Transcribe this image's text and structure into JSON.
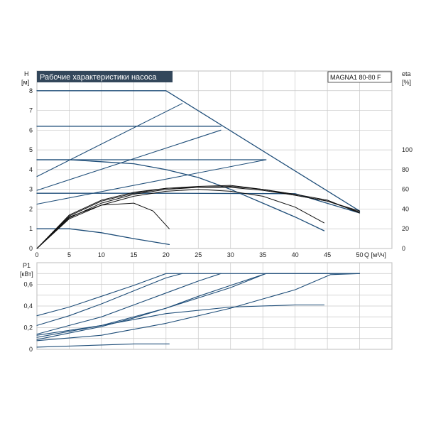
{
  "chart_data": [
    {
      "type": "line",
      "title": "Рабочие характеристики насоса",
      "model": "MAGNA1 80-80 F",
      "ylabel_left": [
        "H",
        "[м]"
      ],
      "ylabel_right": [
        "eta",
        "[%]"
      ],
      "xlabel": "Q [м³/ч]",
      "xlim": [
        0,
        55
      ],
      "ylim": [
        0,
        9
      ],
      "ylim_right": [
        0,
        180
      ],
      "x_ticks": [
        0,
        5,
        10,
        15,
        20,
        25,
        30,
        35,
        40,
        45,
        50
      ],
      "y_ticks": [
        0,
        1,
        2,
        3,
        4,
        5,
        6,
        7,
        8
      ],
      "y_right_ticks": [
        0,
        20,
        40,
        60,
        80,
        100
      ],
      "grid": true,
      "head_series": [
        {
          "x": [
            0,
            10,
            20,
            20.5,
            50
          ],
          "y": [
            8.0,
            8.0,
            8.0,
            7.9,
            1.9
          ]
        },
        {
          "x": [
            0,
            28.5
          ],
          "y": [
            6.2,
            6.2
          ]
        },
        {
          "x": [
            0,
            35.5
          ],
          "y": [
            4.5,
            4.5
          ]
        },
        {
          "x": [
            0,
            20,
            40,
            50
          ],
          "y": [
            2.8,
            2.8,
            2.78,
            1.8
          ]
        },
        {
          "x": [
            0,
            5,
            10,
            15,
            20,
            25,
            30,
            35,
            40,
            44.5
          ],
          "y": [
            4.5,
            4.5,
            4.4,
            4.3,
            4.0,
            3.6,
            3.0,
            2.3,
            1.6,
            0.9
          ]
        },
        {
          "x": [
            0,
            5,
            10,
            15,
            20.5
          ],
          "y": [
            1.0,
            1.0,
            0.8,
            0.5,
            0.2
          ]
        }
      ],
      "control_lines": [
        {
          "x": [
            0,
            22.5
          ],
          "y": [
            3.65,
            7.35
          ]
        },
        {
          "x": [
            0,
            28.5
          ],
          "y": [
            2.95,
            6.0
          ]
        },
        {
          "x": [
            0,
            35.5
          ],
          "y": [
            2.25,
            4.5
          ]
        }
      ],
      "efficiency_series": [
        {
          "x": [
            0,
            5,
            10,
            15,
            20,
            25,
            30,
            35,
            40,
            45,
            50
          ],
          "y": [
            0,
            34,
            49,
            57,
            61,
            63,
            64,
            60,
            55,
            49,
            36
          ]
        },
        {
          "x": [
            0,
            5,
            10,
            15,
            20,
            25,
            30,
            35,
            40,
            45,
            50
          ],
          "y": [
            0,
            33,
            48,
            56,
            61,
            62,
            63,
            60,
            54,
            48,
            37
          ]
        },
        {
          "x": [
            0,
            5,
            10,
            15,
            20,
            25,
            30,
            35,
            40,
            45,
            50
          ],
          "y": [
            0,
            31,
            46,
            55,
            60,
            62,
            62,
            59,
            54,
            48,
            38
          ]
        },
        {
          "x": [
            0,
            5,
            10,
            15,
            20,
            25,
            30,
            35,
            40,
            44.5
          ],
          "y": [
            0,
            30,
            44,
            53,
            58,
            60,
            58,
            53,
            42,
            26
          ]
        },
        {
          "x": [
            0,
            5,
            10,
            15,
            18,
            20.5
          ],
          "y": [
            0,
            32,
            44,
            46,
            38,
            20
          ]
        }
      ]
    },
    {
      "type": "line",
      "ylabel": [
        "P1",
        "[кВт]"
      ],
      "xlim": [
        0,
        55
      ],
      "ylim": [
        0,
        0.8
      ],
      "y_ticks": [
        0,
        0.2,
        0.4,
        0.6
      ],
      "y_tick_labels": [
        "0",
        "0,2",
        "0,4",
        "0,6"
      ],
      "grid": true,
      "series": [
        {
          "x": [
            0,
            5,
            10,
            15,
            20,
            50
          ],
          "y": [
            0.31,
            0.39,
            0.49,
            0.59,
            0.7,
            0.7
          ]
        },
        {
          "x": [
            0,
            5,
            10,
            15,
            20,
            22.5
          ],
          "y": [
            0.22,
            0.31,
            0.42,
            0.54,
            0.66,
            0.7
          ]
        },
        {
          "x": [
            0,
            5,
            10,
            15,
            20,
            25,
            28.5
          ],
          "y": [
            0.14,
            0.22,
            0.3,
            0.41,
            0.52,
            0.63,
            0.7
          ]
        },
        {
          "x": [
            0,
            5,
            10,
            15,
            20,
            25,
            30,
            35.5
          ],
          "y": [
            0.09,
            0.15,
            0.21,
            0.29,
            0.38,
            0.49,
            0.59,
            0.7
          ]
        },
        {
          "x": [
            0,
            10,
            20,
            30,
            35.5,
            50
          ],
          "y": [
            0.11,
            0.22,
            0.38,
            0.57,
            0.7,
            0.7
          ]
        },
        {
          "x": [
            0,
            10,
            20,
            30,
            40,
            45.5,
            50
          ],
          "y": [
            0.08,
            0.13,
            0.24,
            0.38,
            0.55,
            0.69,
            0.7
          ]
        },
        {
          "x": [
            0,
            10,
            20,
            30,
            40,
            44.5
          ],
          "y": [
            0.13,
            0.22,
            0.33,
            0.39,
            0.41,
            0.41
          ]
        },
        {
          "x": [
            0,
            5,
            10,
            15,
            20.5
          ],
          "y": [
            0.02,
            0.03,
            0.04,
            0.05,
            0.05
          ]
        }
      ]
    }
  ]
}
